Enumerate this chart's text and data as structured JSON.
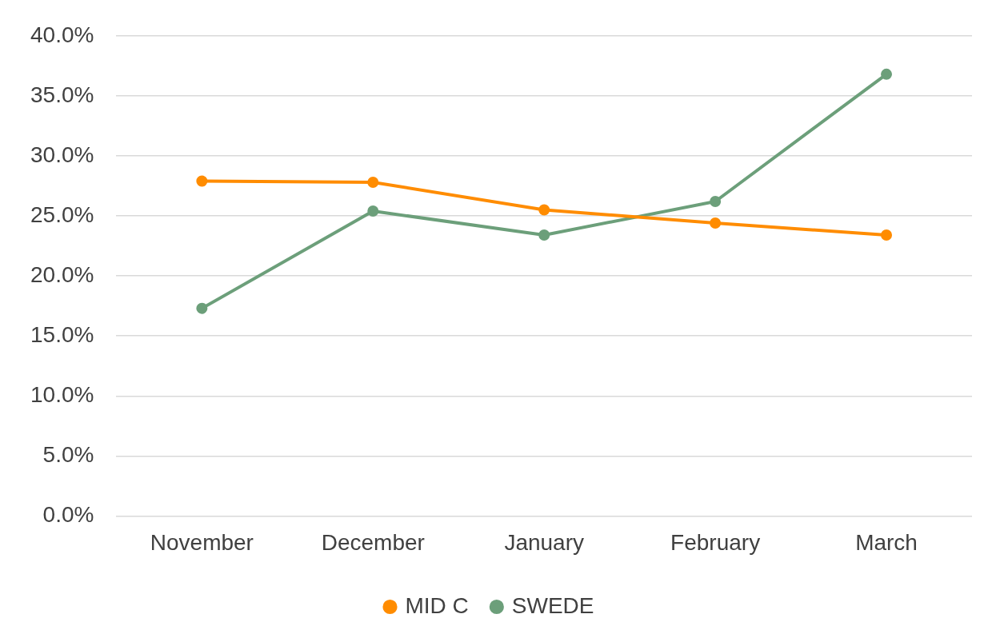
{
  "chart_data": {
    "type": "line",
    "categories": [
      "November",
      "December",
      "January",
      "February",
      "March"
    ],
    "series": [
      {
        "name": "MID C",
        "color": "#ff8c00",
        "values": [
          27.9,
          27.8,
          25.5,
          24.4,
          23.4
        ]
      },
      {
        "name": "SWEDE",
        "color": "#6c9f7a",
        "values": [
          17.3,
          25.4,
          23.4,
          26.2,
          36.8
        ]
      }
    ],
    "ylim": [
      0,
      40
    ],
    "yticks": [
      {
        "value": 0,
        "label": "0.0%"
      },
      {
        "value": 5,
        "label": "5.0%"
      },
      {
        "value": 10,
        "label": "10.0%"
      },
      {
        "value": 15,
        "label": "15.0%"
      },
      {
        "value": 20,
        "label": "20.0%"
      },
      {
        "value": 25,
        "label": "25.0%"
      },
      {
        "value": 30,
        "label": "30.0%"
      },
      {
        "value": 35,
        "label": "35.0%"
      },
      {
        "value": 40,
        "label": "40.0%"
      }
    ],
    "grid": "y",
    "legend": "bottom",
    "marker": "circle",
    "line_style": "solid"
  }
}
